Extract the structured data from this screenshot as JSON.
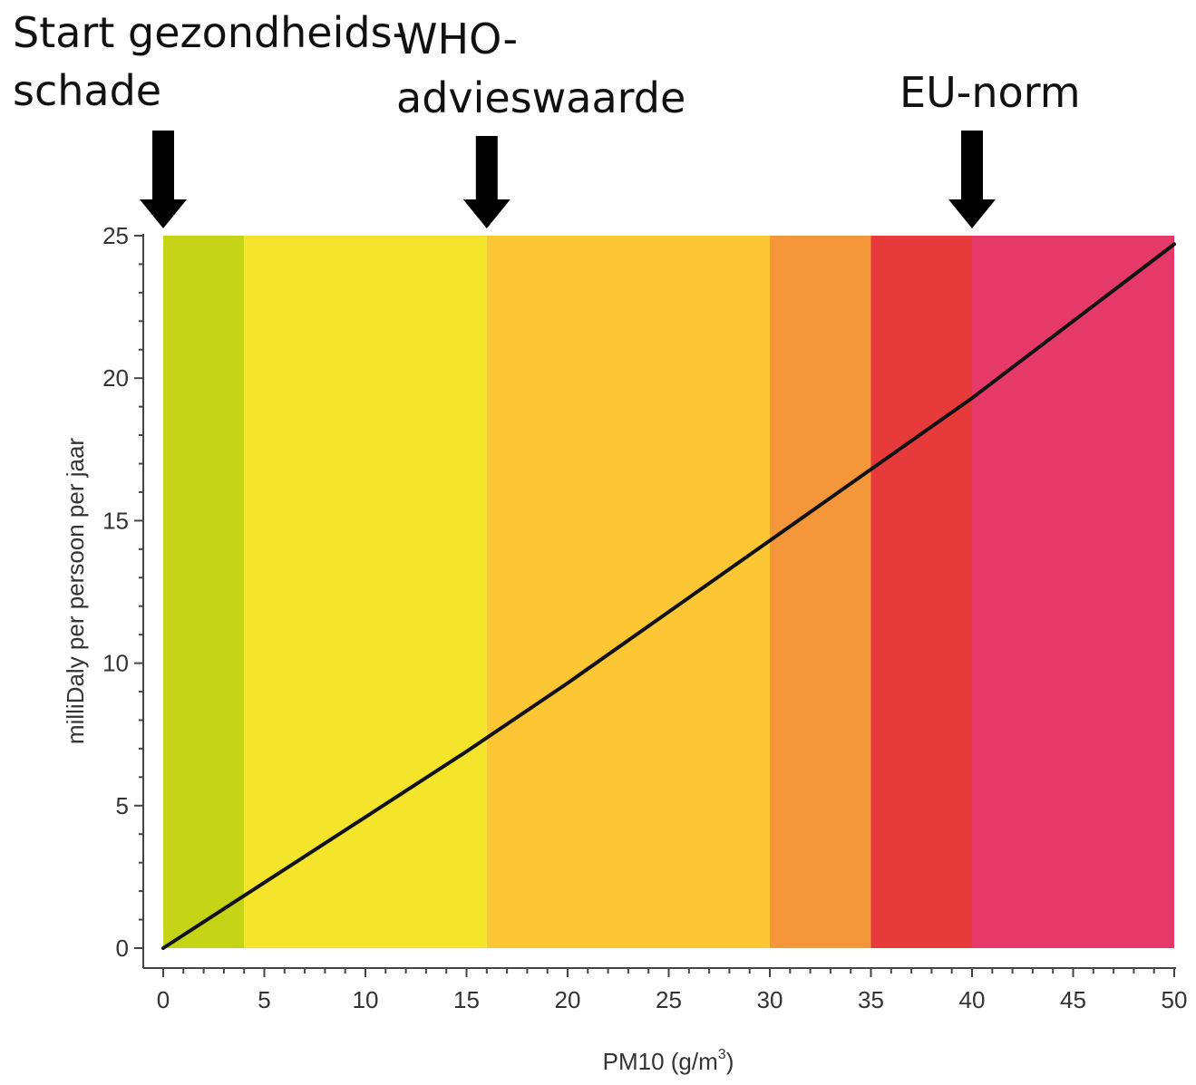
{
  "chart_data": {
    "type": "line",
    "title": "",
    "xlabel": "PM10 (g/m",
    "xlabel_superscript": "3",
    "xlabel_suffix": ")",
    "ylabel": "milliDaly per persoon per jaar",
    "xlim": [
      0,
      50
    ],
    "ylim": [
      0,
      25
    ],
    "x_ticks": [
      "0",
      "5",
      "10",
      "15",
      "20",
      "25",
      "30",
      "35",
      "40",
      "45",
      "50"
    ],
    "y_ticks": [
      "0",
      "5",
      "10",
      "15",
      "20",
      "25"
    ],
    "grid": false,
    "background_bands": [
      {
        "from": 0,
        "to": 4,
        "color": "#c6d418"
      },
      {
        "from": 4,
        "to": 16,
        "color": "#f4e52c"
      },
      {
        "from": 16,
        "to": 30,
        "color": "#fcc634"
      },
      {
        "from": 30,
        "to": 35,
        "color": "#f3973a"
      },
      {
        "from": 35,
        "to": 40,
        "color": "#e63a3b"
      },
      {
        "from": 40,
        "to": 50,
        "color": "#e53a69"
      }
    ],
    "series": [
      {
        "color": "#111111",
        "x": [
          0,
          5,
          10,
          15,
          20,
          25,
          30,
          35,
          40,
          45,
          50
        ],
        "y": [
          0,
          2.3,
          4.6,
          6.9,
          9.3,
          11.8,
          14.3,
          16.8,
          19.3,
          22.0,
          24.7
        ]
      }
    ],
    "annotations": [
      {
        "lines": [
          "Start gezondheids-",
          "schade"
        ],
        "x_value": 0
      },
      {
        "lines": [
          "WHO-",
          "advieswaarde"
        ],
        "x_value": 16
      },
      {
        "lines": [
          "EU-norm"
        ],
        "x_value": 40
      }
    ]
  }
}
